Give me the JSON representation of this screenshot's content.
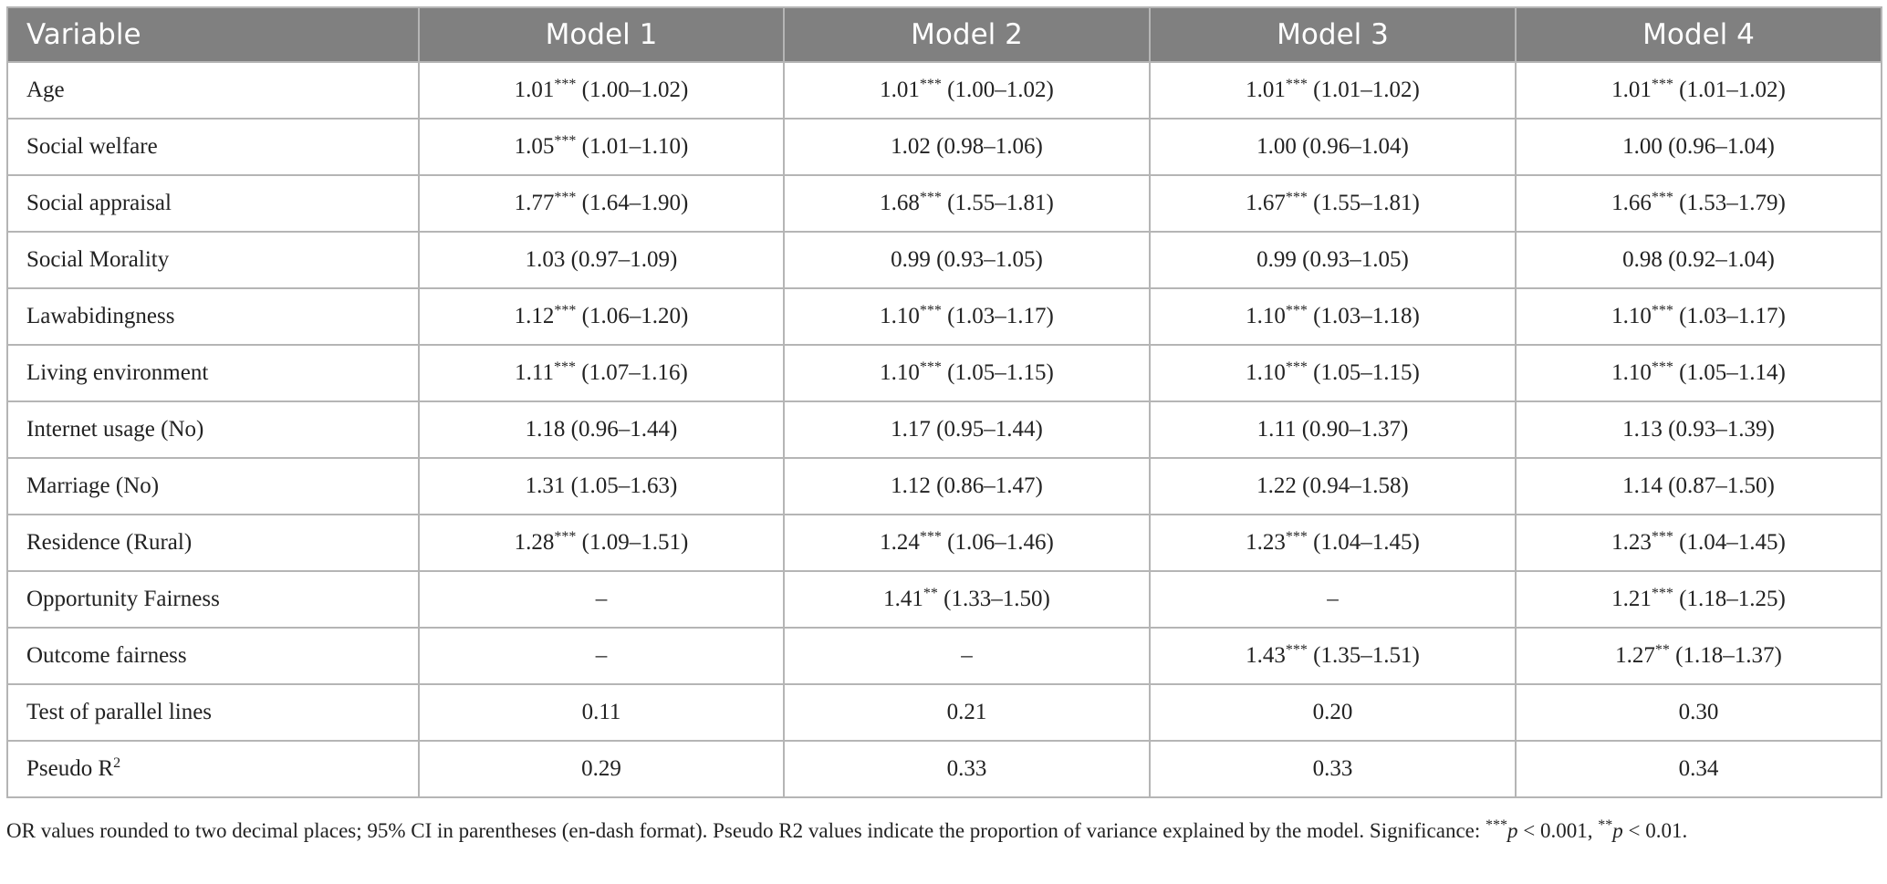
{
  "table": {
    "header": [
      "Variable",
      "Model 1",
      "Model 2",
      "Model 3",
      "Model 4"
    ],
    "rows": [
      {
        "label": "Age",
        "cells": [
          {
            "or": "1.01",
            "sig": "***",
            "ci": "(1.00–1.02)"
          },
          {
            "or": "1.01",
            "sig": "***",
            "ci": "(1.00–1.02)"
          },
          {
            "or": "1.01",
            "sig": "***",
            "ci": "(1.01–1.02)"
          },
          {
            "or": "1.01",
            "sig": "***",
            "ci": "(1.01–1.02)"
          }
        ]
      },
      {
        "label": "Social welfare",
        "cells": [
          {
            "or": "1.05",
            "sig": "***",
            "ci": "(1.01–1.10)"
          },
          {
            "or": "1.02",
            "ci": "(0.98–1.06)"
          },
          {
            "or": "1.00",
            "ci": "(0.96–1.04)"
          },
          {
            "or": "1.00",
            "ci": "(0.96–1.04)"
          }
        ]
      },
      {
        "label": "Social appraisal",
        "cells": [
          {
            "or": "1.77",
            "sig": "***",
            "ci": "(1.64–1.90)"
          },
          {
            "or": "1.68",
            "sig": "***",
            "ci": "(1.55–1.81)"
          },
          {
            "or": "1.67",
            "sig": "***",
            "ci": "(1.55–1.81)"
          },
          {
            "or": "1.66",
            "sig": "***",
            "ci": "(1.53–1.79)"
          }
        ]
      },
      {
        "label": "Social Morality",
        "cells": [
          {
            "or": "1.03",
            "ci": "(0.97–1.09)"
          },
          {
            "or": "0.99",
            "ci": "(0.93–1.05)"
          },
          {
            "or": "0.99",
            "ci": "(0.93–1.05)"
          },
          {
            "or": "0.98",
            "ci": "(0.92–1.04)"
          }
        ]
      },
      {
        "label": "Lawabidingness",
        "cells": [
          {
            "or": "1.12",
            "sig": "***",
            "ci": "(1.06–1.20)"
          },
          {
            "or": "1.10",
            "sig": "***",
            "ci": "(1.03–1.17)"
          },
          {
            "or": "1.10",
            "sig": "***",
            "ci": "(1.03–1.18)"
          },
          {
            "or": "1.10",
            "sig": "***",
            "ci": "(1.03–1.17)"
          }
        ]
      },
      {
        "label": "Living environment",
        "cells": [
          {
            "or": "1.11",
            "sig": "***",
            "ci": "(1.07–1.16)"
          },
          {
            "or": "1.10",
            "sig": "***",
            "ci": "(1.05–1.15)"
          },
          {
            "or": "1.10",
            "sig": "***",
            "ci": "(1.05–1.15)"
          },
          {
            "or": "1.10",
            "sig": "***",
            "ci": "(1.05–1.14)"
          }
        ]
      },
      {
        "label": "Internet usage (No)",
        "cells": [
          {
            "or": "1.18",
            "ci": "(0.96–1.44)"
          },
          {
            "or": "1.17",
            "ci": "(0.95–1.44)"
          },
          {
            "or": "1.11",
            "ci": "(0.90–1.37)"
          },
          {
            "or": "1.13",
            "ci": "(0.93–1.39)"
          }
        ]
      },
      {
        "label": "Marriage (No)",
        "cells": [
          {
            "or": "1.31",
            "ci": "(1.05–1.63)"
          },
          {
            "or": "1.12",
            "ci": "(0.86–1.47)"
          },
          {
            "or": "1.22",
            "ci": "(0.94–1.58)"
          },
          {
            "or": "1.14",
            "ci": "(0.87–1.50)"
          }
        ]
      },
      {
        "label": "Residence (Rural)",
        "cells": [
          {
            "or": "1.28",
            "sig": "***",
            "ci": "(1.09–1.51)"
          },
          {
            "or": "1.24",
            "sig": "***",
            "ci": "(1.06–1.46)"
          },
          {
            "or": "1.23",
            "sig": "***",
            "ci": "(1.04–1.45)"
          },
          {
            "or": "1.23",
            "sig": "***",
            "ci": "(1.04–1.45)"
          }
        ]
      },
      {
        "label": "Opportunity Fairness",
        "cells": [
          "–",
          {
            "or": "1.41",
            "sig": "**",
            "ci": "(1.33–1.50)"
          },
          "–",
          {
            "or": "1.21",
            "sig": "***",
            "ci": "(1.18–1.25)"
          }
        ]
      },
      {
        "label": "Outcome fairness",
        "cells": [
          "–",
          "–",
          {
            "or": "1.43",
            "sig": "***",
            "ci": "(1.35–1.51)"
          },
          {
            "or": "1.27",
            "sig": "**",
            "ci": "(1.18–1.37)"
          }
        ]
      },
      {
        "label": "Test of parallel lines",
        "cells": [
          "0.11",
          "0.21",
          "0.20",
          "0.30"
        ]
      },
      {
        "label": {
          "text": "Pseudo R",
          "sup": "2"
        },
        "cells": [
          "0.29",
          "0.33",
          "0.33",
          "0.34"
        ]
      }
    ]
  },
  "footnote": [
    {
      "text": "OR values rounded to two decimal places; 95% CI in parentheses (en-dash format). Pseudo R2 values indicate the proportion of variance explained by the model. Significance: ",
      "style": "plain"
    },
    {
      "text": "***",
      "style": "sup"
    },
    {
      "text": "p",
      "style": "italic"
    },
    {
      "text": " < 0.001, ",
      "style": "plain"
    },
    {
      "text": "**",
      "style": "sup"
    },
    {
      "text": "p",
      "style": "italic"
    },
    {
      "text": " < 0.01.",
      "style": "plain"
    }
  ]
}
